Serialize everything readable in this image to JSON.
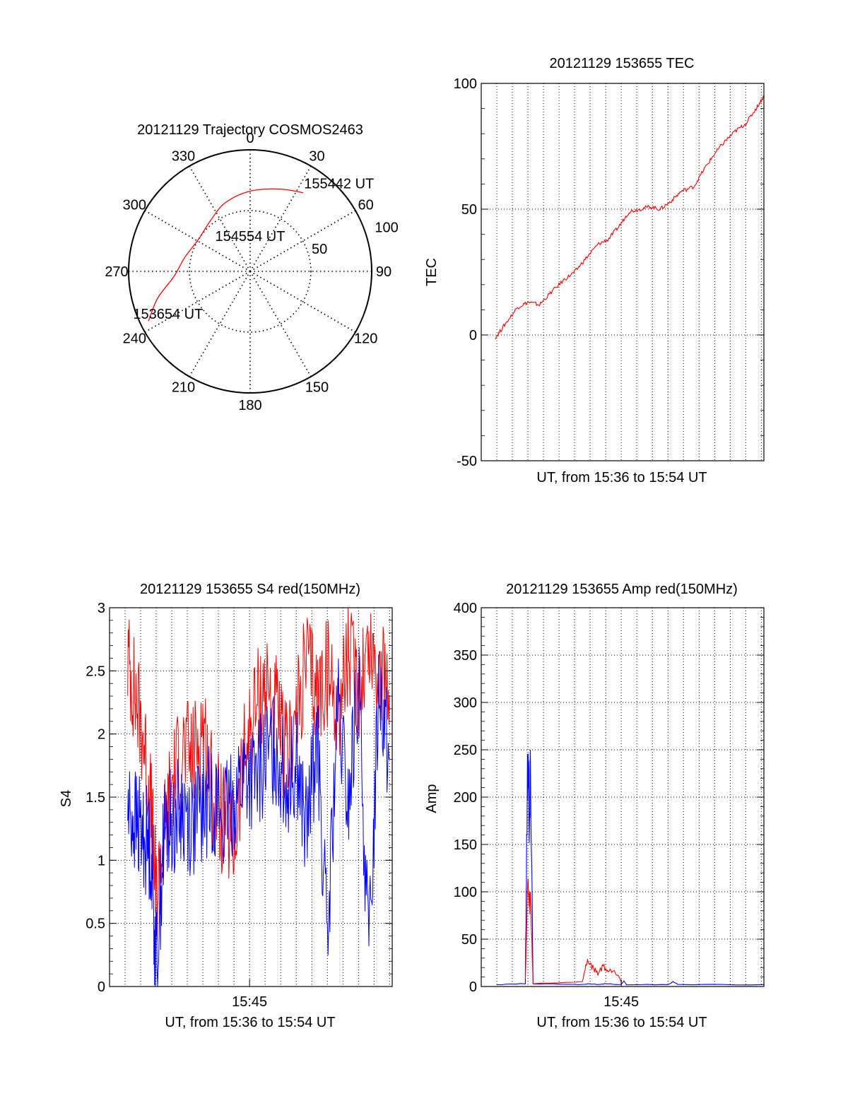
{
  "chart_data": [
    {
      "type": "polar",
      "title": "20121129 Trajectory COSMOS2463",
      "angle_labels": [
        "0",
        "30",
        "60",
        "90",
        "120",
        "150",
        "180",
        "210",
        "240",
        "270",
        "300",
        "330"
      ],
      "radial_labels": [
        "50",
        "100"
      ],
      "rlim": [
        0,
        100
      ],
      "grid": true,
      "series": [
        {
          "color": "#ff0000",
          "points": [
            {
              "az": 244,
              "r": 93
            },
            {
              "az": 254,
              "r": 79
            },
            {
              "az": 266,
              "r": 63
            },
            {
              "az": 282,
              "r": 55
            },
            {
              "az": 302,
              "r": 50
            },
            {
              "az": 322,
              "r": 53
            },
            {
              "az": 340,
              "r": 60
            },
            {
              "az": 0,
              "r": 66
            },
            {
              "az": 20,
              "r": 72
            },
            {
              "az": 34,
              "r": 78
            }
          ]
        }
      ],
      "annotations": [
        {
          "text": "153654 UT",
          "az": 240,
          "r": 78
        },
        {
          "text": "154554 UT",
          "az": 0,
          "r": 25
        },
        {
          "text": "155442 UT",
          "az": 47,
          "r": 100
        }
      ]
    },
    {
      "type": "line",
      "title": "20121129 153655 TEC",
      "xlabel": "UT, from 15:36 to 15:54 UT",
      "ylabel": "TEC",
      "xlim": [
        "15:36:00",
        "15:54:10"
      ],
      "ylim": [
        -50,
        100
      ],
      "yticks": [
        -50,
        0,
        50,
        100
      ],
      "grid": true,
      "series": [
        {
          "color": "#ff0000",
          "x": [
            "15:36:55",
            "15:37:30",
            "15:38:20",
            "15:39:00",
            "15:39:45",
            "15:40:30",
            "15:41:20",
            "15:42:00",
            "15:42:40",
            "15:43:30",
            "15:44:10",
            "15:44:50",
            "15:45:30",
            "15:46:10",
            "15:46:50",
            "15:47:30",
            "15:48:10",
            "15:48:50",
            "15:49:40",
            "15:50:20",
            "15:51:00",
            "15:51:40",
            "15:52:20",
            "15:53:00",
            "15:53:40",
            "15:54:10"
          ],
          "values": [
            -1,
            4,
            11,
            13,
            12,
            17,
            22,
            25,
            30,
            36,
            38,
            43,
            49,
            50,
            51,
            50,
            53,
            57,
            59,
            66,
            72,
            77,
            81,
            84,
            90,
            95
          ]
        }
      ]
    },
    {
      "type": "line",
      "title": "20121129 153655 S4 red(150MHz)",
      "xlabel": "UT, from 15:36 to 15:54 UT",
      "ylabel": "S4",
      "xticks": [
        "15:45"
      ],
      "xlim": [
        "15:36:00",
        "15:54:10"
      ],
      "ylim": [
        0,
        3
      ],
      "yticks": [
        0,
        0.5,
        1,
        1.5,
        2,
        2.5,
        3
      ],
      "grid": true,
      "series": [
        {
          "color": "#ff0000",
          "x": [
            "15:37:10",
            "15:37:40",
            "15:38:10",
            "15:38:40",
            "15:39:00",
            "15:39:30",
            "15:40:00",
            "15:40:40",
            "15:41:20",
            "15:42:00",
            "15:42:40",
            "15:43:20",
            "15:44:00",
            "15:44:40",
            "15:45:20",
            "15:46:00",
            "15:46:40",
            "15:47:20",
            "15:48:00",
            "15:48:40",
            "15:49:20",
            "15:50:00",
            "15:50:40",
            "15:51:20",
            "15:52:00",
            "15:52:40",
            "15:53:20",
            "15:54:00"
          ],
          "values": [
            2.6,
            2.3,
            2.0,
            1.4,
            0.7,
            1.2,
            1.6,
            1.9,
            1.8,
            2.1,
            1.5,
            1.3,
            1.1,
            1.8,
            2.2,
            2.4,
            2.2,
            1.8,
            2.1,
            2.6,
            2.3,
            2.5,
            2.2,
            2.6,
            2.4,
            2.7,
            2.5,
            2.3
          ]
        },
        {
          "color": "#0000ff",
          "x": [
            "15:37:10",
            "15:37:40",
            "15:38:10",
            "15:38:40",
            "15:39:00",
            "15:39:30",
            "15:40:00",
            "15:40:40",
            "15:41:20",
            "15:42:00",
            "15:42:40",
            "15:43:20",
            "15:44:00",
            "15:44:40",
            "15:45:20",
            "15:46:00",
            "15:46:40",
            "15:47:20",
            "15:48:00",
            "15:48:40",
            "15:49:20",
            "15:50:00",
            "15:50:40",
            "15:51:20",
            "15:52:00",
            "15:52:40",
            "15:53:20",
            "15:54:00"
          ],
          "values": [
            1.4,
            1.3,
            1.2,
            1.1,
            0.15,
            1.2,
            1.3,
            1.4,
            1.3,
            1.4,
            1.5,
            1.3,
            1.5,
            1.7,
            1.6,
            1.8,
            1.9,
            1.6,
            1.8,
            1.2,
            2.0,
            0.3,
            2.2,
            1.4,
            2.4,
            0.2,
            2.5,
            1.8
          ]
        }
      ]
    },
    {
      "type": "line",
      "title": "20121129 153655 Amp red(150MHz)",
      "xlabel": "UT, from 15:36 to 15:54 UT",
      "ylabel": "Amp",
      "xticks": [
        "15:45"
      ],
      "xlim": [
        "15:36:00",
        "15:54:10"
      ],
      "ylim": [
        0,
        400
      ],
      "yticks": [
        0,
        50,
        100,
        150,
        200,
        250,
        300,
        350,
        400
      ],
      "grid": true,
      "series": [
        {
          "color": "#0000ff",
          "x": [
            "15:37:00",
            "15:38:50",
            "15:38:55",
            "15:39:00",
            "15:39:05",
            "15:39:10",
            "15:39:20",
            "15:42:00",
            "15:43:00",
            "15:43:30",
            "15:44:00",
            "15:45:00",
            "15:45:10",
            "15:45:20",
            "15:48:00",
            "15:48:20",
            "15:48:40",
            "15:54:10"
          ],
          "values": [
            2,
            3,
            150,
            240,
            180,
            230,
            3,
            2,
            3,
            2,
            3,
            2,
            6,
            2,
            2,
            5,
            2,
            2
          ]
        },
        {
          "color": "#ff0000",
          "x": [
            "15:38:50",
            "15:39:00",
            "15:39:05",
            "15:39:10",
            "15:39:20",
            "15:42:30",
            "15:42:50",
            "15:43:10",
            "15:43:30",
            "15:43:50",
            "15:44:10",
            "15:44:30",
            "15:44:50",
            "15:45:00"
          ],
          "values": [
            8,
            110,
            85,
            95,
            3,
            5,
            28,
            20,
            14,
            22,
            16,
            18,
            12,
            4
          ]
        }
      ]
    }
  ]
}
